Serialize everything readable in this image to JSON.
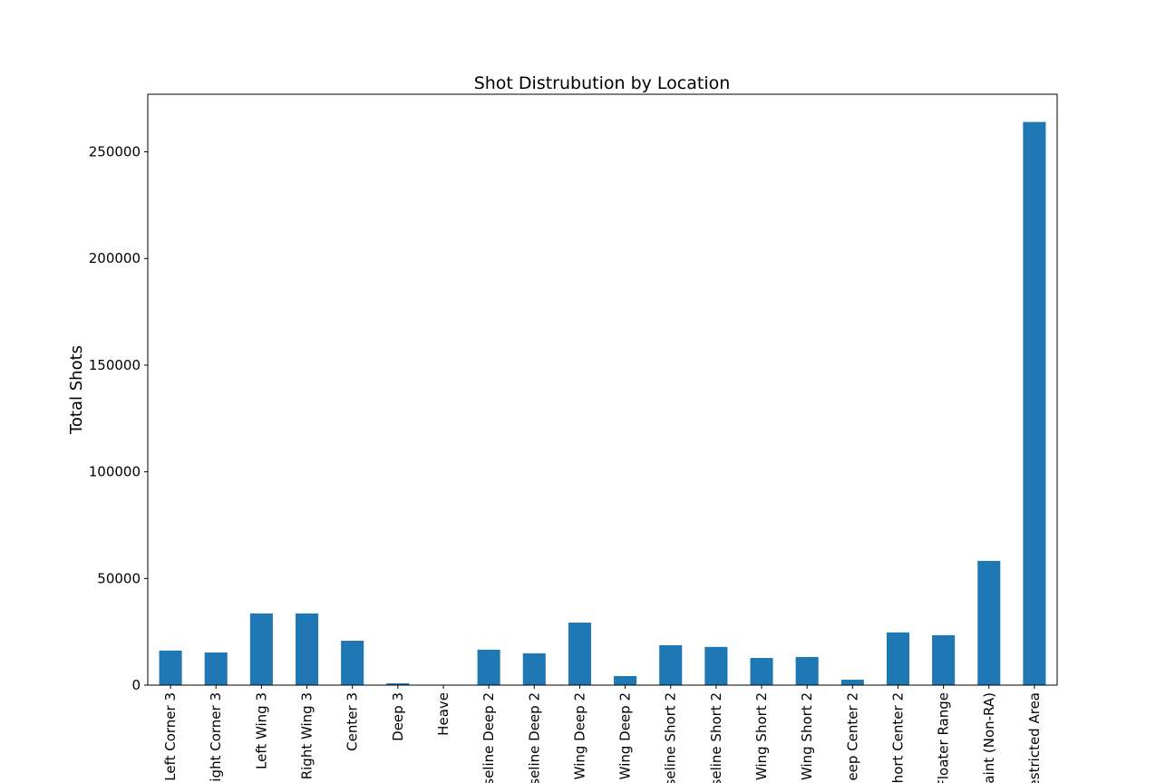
{
  "chart_data": {
    "type": "bar",
    "title": "Shot Distrubution by Location",
    "y_label": "Total Shots",
    "categories": [
      "Left Corner 3",
      "ight Corner 3",
      "Left Wing 3",
      "Right Wing 3",
      "Center 3",
      "Deep 3",
      "Heave",
      "seline Deep 2",
      "seline Deep 2",
      "Wing Deep 2",
      "Wing Deep 2",
      "seline Short 2",
      "seline Short 2",
      "Wing Short 2",
      "Wing Short 2",
      "eep Center 2",
      "hort Center 2",
      "Floater Range",
      "aint (Non-RA)",
      "estricted Area"
    ],
    "values": [
      16200,
      15300,
      33600,
      33600,
      20800,
      850,
      100,
      16600,
      14900,
      29300,
      4250,
      18700,
      17900,
      12750,
      13200,
      2550,
      24700,
      23400,
      58250,
      264000
    ],
    "color": "#1f77b4",
    "ylim": [
      0,
      277000
    ],
    "yticks": [
      0,
      50000,
      100000,
      150000,
      200000,
      250000
    ],
    "grid": false
  }
}
